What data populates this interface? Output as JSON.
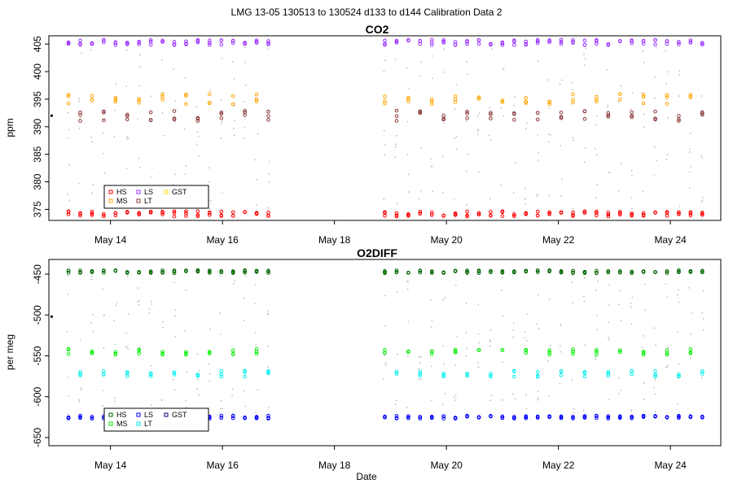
{
  "figure_title": "LMG   13-05    130513 to 130524    d133 to d144   Calibration Data 2",
  "x_axis": {
    "label": "Date",
    "range_days": [
      12.9,
      24.9
    ],
    "ticks": [
      {
        "day": 14,
        "label": "May 14"
      },
      {
        "day": 16,
        "label": "May 16"
      },
      {
        "day": 18,
        "label": "May 18"
      },
      {
        "day": 20,
        "label": "May 20"
      },
      {
        "day": 22,
        "label": "May 22"
      },
      {
        "day": 24,
        "label": "May 24"
      }
    ]
  },
  "colors": {
    "background_points": "#bdbdbd",
    "co2_HS": "#ff0000",
    "co2_MS": "#ffa500",
    "co2_LS": "#9b30ff",
    "co2_LT": "#8b3a3a",
    "co2_GST": "#ffd700",
    "o2_HS": "#006400",
    "o2_MS": "#00ee00",
    "o2_LS": "#0000ff",
    "o2_LT": "#00eeee",
    "o2_GST": "#000080"
  },
  "chart_data": [
    {
      "type": "scatter",
      "title": "CO2",
      "xlabel": "",
      "ylabel": "ppm",
      "ylim": [
        373,
        406.5
      ],
      "yticks": [
        375,
        380,
        385,
        390,
        395,
        400,
        405
      ],
      "legend": {
        "position": "bottom-left",
        "entries": [
          "HS",
          "MS",
          "LS",
          "LT",
          "GST"
        ]
      },
      "outlier": {
        "day": 12.95,
        "value": 392
      },
      "series": [
        {
          "name": "HS",
          "color_key": "co2_HS",
          "value": 374.2
        },
        {
          "name": "MS",
          "color_key": "co2_MS",
          "value": 395
        },
        {
          "name": "LS",
          "color_key": "co2_LS",
          "value": 405.3
        },
        {
          "name": "LT",
          "color_key": "co2_LT",
          "value": 392
        }
      ]
    },
    {
      "type": "scatter",
      "title": "O2DIFF",
      "xlabel": "Date",
      "ylabel": "per meg",
      "ylim": [
        -660,
        -432
      ],
      "yticks": [
        -650,
        -600,
        -550,
        -500,
        -450
      ],
      "legend": {
        "position": "bottom-left",
        "entries": [
          "HS",
          "MS",
          "LS",
          "LT",
          "GST"
        ]
      },
      "outlier": {
        "day": 12.95,
        "value": -502
      },
      "series": [
        {
          "name": "HS",
          "color_key": "o2_HS",
          "value": -447
        },
        {
          "name": "MS",
          "color_key": "o2_MS",
          "value": -545
        },
        {
          "name": "LS",
          "color_key": "o2_LS",
          "value": -625
        },
        {
          "name": "LT",
          "color_key": "o2_LT",
          "value": -572
        }
      ]
    }
  ]
}
